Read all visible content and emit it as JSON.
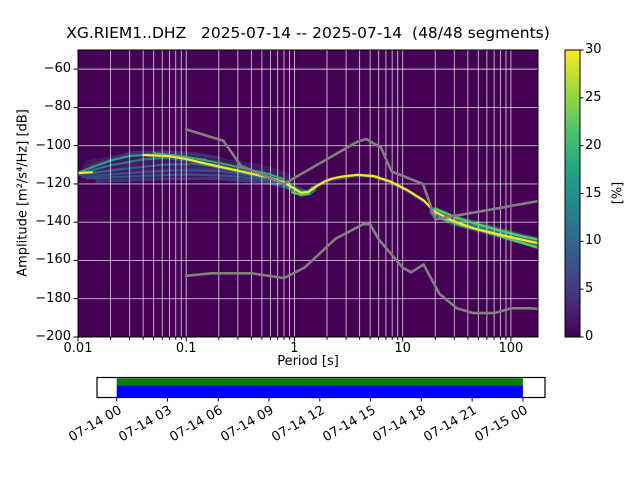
{
  "title": "XG.RIEM1..DHZ   2025-07-14 -- 2025-07-14  (48/48 segments)",
  "axes": {
    "xlabel": "Period [s]",
    "ylabel": "Amplitude [m²/s⁴/Hz] [dB]",
    "x_tick_values": [
      0.01,
      0.1,
      1,
      10,
      100
    ],
    "x_tick_labels": [
      "0.01",
      "0.1",
      "1",
      "10",
      "100"
    ],
    "y_tick_values": [
      -60,
      -80,
      -100,
      -120,
      -140,
      -160,
      -180,
      -200
    ],
    "y_tick_labels": [
      "−60",
      "−80",
      "−100",
      "−120",
      "−140",
      "−160",
      "−180",
      "−200"
    ]
  },
  "colorbar": {
    "label": "[%]",
    "tick_values": [
      0,
      5,
      10,
      15,
      20,
      25,
      30
    ],
    "tick_labels": [
      "0",
      "5",
      "10",
      "15",
      "20",
      "25",
      "30"
    ],
    "min": 0,
    "max": 30,
    "colormap": "viridis",
    "gradient": [
      [
        0.0,
        "#440154"
      ],
      [
        0.14,
        "#46327e"
      ],
      [
        0.29,
        "#365c8d"
      ],
      [
        0.43,
        "#277f8e"
      ],
      [
        0.57,
        "#1fa187"
      ],
      [
        0.71,
        "#4ac16d"
      ],
      [
        0.86,
        "#a0da39"
      ],
      [
        1.0,
        "#fde725"
      ]
    ]
  },
  "chart_data": {
    "type": "heatmap",
    "subtype": "ppsd-probabilistic-power-spectral-density",
    "title": "XG.RIEM1..DHZ   2025-07-14 -- 2025-07-14  (48/48 segments)",
    "xlabel": "Period [s]",
    "ylabel": "Amplitude [m²/s⁴/Hz] [dB]",
    "x_scale": "log",
    "xlim": [
      0.01,
      178
    ],
    "ylim": [
      -200,
      -50
    ],
    "grid": true,
    "background_color": "#440154",
    "grid_color": "#ffffff",
    "mode_color": "#fde725",
    "noise_model_color": "#808080",
    "mode_curve_segments": [
      {
        "points": [
          [
            0.01,
            -114.3
          ],
          [
            0.0135,
            -113.9
          ]
        ]
      },
      {
        "points": [
          [
            0.04,
            -104.9
          ],
          [
            0.07,
            -105.5
          ],
          [
            0.1,
            -107.0
          ],
          [
            0.15,
            -109.3
          ],
          [
            0.22,
            -111.4
          ],
          [
            0.3,
            -113.1
          ],
          [
            0.45,
            -115.3
          ],
          [
            0.6,
            -116.8
          ],
          [
            0.8,
            -119.2
          ],
          [
            1.0,
            -122.5
          ],
          [
            1.15,
            -124.6
          ],
          [
            1.35,
            -124.1
          ],
          [
            1.6,
            -121.2
          ],
          [
            1.9,
            -118.7
          ],
          [
            2.3,
            -117.0
          ],
          [
            2.8,
            -116.1
          ],
          [
            3.8,
            -115.3
          ],
          [
            5.4,
            -115.9
          ],
          [
            7.7,
            -118.8
          ],
          [
            11,
            -123.2
          ],
          [
            15.6,
            -128.6
          ],
          [
            19.5,
            -134.3
          ],
          [
            28,
            -138.9
          ],
          [
            45,
            -143.2
          ],
          [
            70,
            -145.8
          ],
          [
            95,
            -147.6
          ],
          [
            130,
            -149.3
          ],
          [
            178,
            -151.0
          ]
        ]
      }
    ],
    "noise_models": {
      "nlnm": [
        [
          0.1,
          -168.0
        ],
        [
          0.17,
          -166.7
        ],
        [
          0.4,
          -166.7
        ],
        [
          0.8,
          -169.2
        ],
        [
          1.24,
          -163.7
        ],
        [
          2.4,
          -148.6
        ],
        [
          4.3,
          -141.1
        ],
        [
          5.0,
          -141.1
        ],
        [
          6.0,
          -149.0
        ],
        [
          10.0,
          -163.8
        ],
        [
          12.0,
          -166.2
        ],
        [
          15.6,
          -162.1
        ],
        [
          21.9,
          -177.5
        ],
        [
          31.6,
          -185.0
        ],
        [
          45.0,
          -187.5
        ],
        [
          70.0,
          -187.5
        ],
        [
          101.0,
          -185.0
        ],
        [
          154.0,
          -185.0
        ],
        [
          178.0,
          -185.3
        ]
      ],
      "nhnm": [
        [
          0.1,
          -91.5
        ],
        [
          0.22,
          -97.4
        ],
        [
          0.32,
          -110.5
        ],
        [
          0.8,
          -120.0
        ],
        [
          3.8,
          -98.0
        ],
        [
          4.6,
          -96.5
        ],
        [
          6.3,
          -101.0
        ],
        [
          7.9,
          -113.5
        ],
        [
          15.4,
          -120.0
        ],
        [
          20.0,
          -138.5
        ],
        [
          178.0,
          -129.0
        ]
      ]
    },
    "spread_streaks": [
      {
        "color": "#3b528b",
        "opacity": 0.3,
        "width": 15,
        "points": [
          [
            0.013,
            -111.3
          ],
          [
            0.03,
            -107.6
          ],
          [
            0.07,
            -107.0
          ],
          [
            0.15,
            -108.8
          ],
          [
            0.3,
            -111.6
          ],
          [
            0.55,
            -114.4
          ],
          [
            0.8,
            -117.6
          ]
        ]
      },
      {
        "color": "#3b528b",
        "opacity": 0.3,
        "width": 10,
        "points": [
          [
            0.015,
            -115.6
          ],
          [
            0.08,
            -113.6
          ],
          [
            0.25,
            -114.6
          ],
          [
            0.6,
            -117.4
          ],
          [
            0.95,
            -120.8
          ]
        ]
      },
      {
        "color": "#414487",
        "opacity": 0.6,
        "width": 3,
        "points": [
          [
            0.013,
            -110.8
          ],
          [
            0.03,
            -103.8
          ],
          [
            0.06,
            -102.9
          ],
          [
            0.12,
            -104.3
          ],
          [
            0.2,
            -106.2
          ]
        ]
      },
      {
        "color": "#26a784",
        "opacity": 0.95,
        "width": 2.2,
        "points": [
          [
            0.01,
            -114.0
          ],
          [
            0.014,
            -111.0
          ],
          [
            0.02,
            -107.8
          ],
          [
            0.03,
            -105.4
          ],
          [
            0.045,
            -104.7
          ]
        ]
      },
      {
        "color": "#21918c",
        "opacity": 0.8,
        "width": 2.2,
        "points": [
          [
            0.0105,
            -114.6
          ],
          [
            0.02,
            -110.2
          ],
          [
            0.04,
            -107.2
          ],
          [
            0.08,
            -106.1
          ],
          [
            0.15,
            -107.2
          ]
        ]
      },
      {
        "color": "#31688e",
        "opacity": 0.85,
        "width": 2.4,
        "points": [
          [
            0.01,
            -115.3
          ],
          [
            0.025,
            -112.3
          ],
          [
            0.06,
            -110.0
          ],
          [
            0.12,
            -109.6
          ],
          [
            0.25,
            -112.0
          ],
          [
            0.45,
            -114.8
          ]
        ]
      },
      {
        "color": "#3b528b",
        "opacity": 0.85,
        "width": 2.6,
        "points": [
          [
            0.011,
            -116.3
          ],
          [
            0.03,
            -114.2
          ],
          [
            0.08,
            -112.8
          ],
          [
            0.2,
            -113.2
          ],
          [
            0.4,
            -115.6
          ],
          [
            0.65,
            -117.8
          ]
        ]
      },
      {
        "color": "#31688e",
        "opacity": 0.7,
        "width": 2.2,
        "points": [
          [
            0.012,
            -117.2
          ],
          [
            0.04,
            -115.8
          ],
          [
            0.1,
            -115.0
          ],
          [
            0.25,
            -115.8
          ],
          [
            0.5,
            -117.8
          ],
          [
            0.8,
            -120.4
          ]
        ]
      },
      {
        "color": "#414487",
        "opacity": 0.75,
        "width": 3,
        "points": [
          [
            0.015,
            -118.6
          ],
          [
            0.06,
            -117.4
          ],
          [
            0.2,
            -117.2
          ],
          [
            0.5,
            -119.0
          ],
          [
            0.85,
            -121.8
          ]
        ]
      },
      {
        "color": "#21918c",
        "opacity": 0.5,
        "width": 4.5,
        "points": [
          [
            0.045,
            -104.9
          ],
          [
            0.1,
            -107.2
          ],
          [
            0.22,
            -111.4
          ],
          [
            0.45,
            -115.3
          ],
          [
            0.75,
            -118.3
          ],
          [
            1.0,
            -122.3
          ],
          [
            1.3,
            -124.2
          ]
        ]
      },
      {
        "color": "#21918c",
        "opacity": 0.85,
        "width": 6,
        "points": [
          [
            0.85,
            -120.6
          ],
          [
            1.0,
            -123.1
          ],
          [
            1.15,
            -125.0
          ],
          [
            1.35,
            -124.6
          ],
          [
            1.5,
            -122.6
          ]
        ]
      },
      {
        "color": "#21918c",
        "opacity": 0.45,
        "width": 4,
        "points": [
          [
            1.5,
            -121.9
          ],
          [
            2.1,
            -117.9
          ],
          [
            3.8,
            -115.4
          ],
          [
            5.4,
            -116.0
          ],
          [
            7.7,
            -119.0
          ],
          [
            11,
            -123.4
          ],
          [
            15.6,
            -128.8
          ]
        ]
      },
      {
        "color": "#31688e",
        "opacity": 0.55,
        "width": 11,
        "points": [
          [
            20,
            -134.9
          ],
          [
            30,
            -139.1
          ],
          [
            60,
            -143.6
          ],
          [
            110,
            -147.9
          ],
          [
            178,
            -151.0
          ]
        ]
      },
      {
        "color": "#21918c",
        "opacity": 0.75,
        "width": 7,
        "points": [
          [
            19,
            -134.3
          ],
          [
            30,
            -139.0
          ],
          [
            60,
            -143.5
          ],
          [
            110,
            -147.8
          ],
          [
            178,
            -151.0
          ]
        ]
      }
    ],
    "green_fringes": [
      {
        "color": "#35b779",
        "opacity": 0.9,
        "width": 2.0,
        "points": [
          [
            0.05,
            -103.9
          ],
          [
            0.09,
            -105.4
          ],
          [
            0.15,
            -107.6
          ],
          [
            0.25,
            -110.1
          ],
          [
            0.4,
            -112.7
          ],
          [
            0.6,
            -115.0
          ],
          [
            0.8,
            -117.6
          ]
        ]
      },
      {
        "color": "#5ec962",
        "opacity": 0.95,
        "width": 2.2,
        "points": [
          [
            0.95,
            -124.4
          ],
          [
            1.15,
            -125.7
          ],
          [
            1.35,
            -125.1
          ]
        ]
      },
      {
        "color": "#5ec962",
        "opacity": 0.95,
        "width": 2.4,
        "points": [
          [
            20,
            -132.9
          ],
          [
            30,
            -137.3
          ],
          [
            50,
            -141.2
          ],
          [
            90,
            -145.2
          ],
          [
            130,
            -147.4
          ],
          [
            178,
            -149.0
          ]
        ]
      },
      {
        "color": "#5ec962",
        "opacity": 0.95,
        "width": 2.4,
        "points": [
          [
            22,
            -137.7
          ],
          [
            35,
            -141.7
          ],
          [
            60,
            -145.2
          ],
          [
            110,
            -149.7
          ],
          [
            178,
            -153.4
          ]
        ]
      }
    ]
  },
  "timeline": {
    "tick_labels": [
      "07-14 00",
      "07-14 03",
      "07-14 06",
      "07-14 09",
      "07-14 12",
      "07-14 15",
      "07-14 18",
      "07-14 21",
      "07-15 00"
    ],
    "top_bar_color": "#008000",
    "bottom_bar_color": "#0000ff",
    "frame_color": "#000000"
  }
}
